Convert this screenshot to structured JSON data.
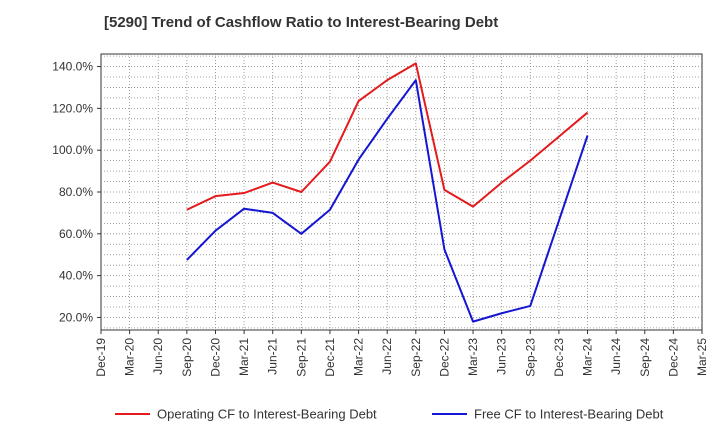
{
  "chart_data": {
    "type": "line",
    "title": "[5290]  Trend of Cashflow Ratio to Interest-Bearing Debt",
    "xlabel": "",
    "ylabel": "",
    "categories": [
      "Dec-19",
      "Mar-20",
      "Jun-20",
      "Sep-20",
      "Dec-20",
      "Mar-21",
      "Jun-21",
      "Sep-21",
      "Dec-21",
      "Mar-22",
      "Jun-22",
      "Sep-22",
      "Dec-22",
      "Mar-23",
      "Jun-23",
      "Sep-23",
      "Dec-23",
      "Mar-24",
      "Jun-24",
      "Sep-24",
      "Dec-24",
      "Mar-25"
    ],
    "y_ticks": [
      "20.0%",
      "40.0%",
      "60.0%",
      "80.0%",
      "100.0%",
      "120.0%",
      "140.0%"
    ],
    "y_tick_values": [
      20,
      40,
      60,
      80,
      100,
      120,
      140
    ],
    "ylim": [
      14,
      146
    ],
    "grid": true,
    "legend_position": "bottom",
    "series": [
      {
        "name": "Operating CF to Interest-Bearing Debt",
        "color": "#e41a1c",
        "values": [
          null,
          null,
          null,
          71.5,
          78,
          79.5,
          84.5,
          80,
          94.5,
          123.5,
          133.5,
          141.5,
          81,
          73,
          84.5,
          95,
          106.5,
          118,
          null,
          null,
          null,
          null
        ]
      },
      {
        "name": "Free CF to Interest-Bearing Debt",
        "color": "#1515d4",
        "values": [
          null,
          null,
          null,
          47.5,
          61.5,
          72,
          70,
          60,
          71.5,
          95.5,
          115,
          133.5,
          52.5,
          18,
          22,
          25.5,
          null,
          107,
          null,
          null,
          null,
          null
        ]
      }
    ]
  }
}
